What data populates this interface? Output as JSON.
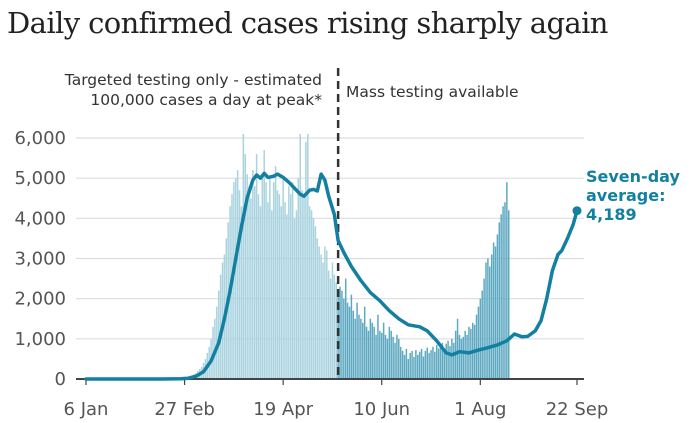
{
  "chart_data": {
    "type": "bar",
    "title": "Daily confirmed cases rising sharply again",
    "xlabel": "",
    "ylabel": "",
    "ylim": [
      0,
      6000
    ],
    "y_ticks": [
      0,
      1000,
      2000,
      3000,
      4000,
      5000,
      6000
    ],
    "y_tick_labels": [
      "0",
      "1,000",
      "2,000",
      "3,000",
      "4,000",
      "5,000",
      "6,000"
    ],
    "x_range_days": [
      0,
      260
    ],
    "x_ticks": [
      {
        "day": 0,
        "label": "6 Jan"
      },
      {
        "day": 52,
        "label": "27 Feb"
      },
      {
        "day": 104,
        "label": "19 Apr"
      },
      {
        "day": 156,
        "label": "10 Jun"
      },
      {
        "day": 208,
        "label": "1 Aug"
      },
      {
        "day": 259,
        "label": "22 Sep"
      }
    ],
    "grid": true,
    "divider": {
      "day": 133,
      "style": "dashed"
    },
    "annotations": {
      "left_line1": "Targeted testing only - estimated",
      "left_line2": "100,000 cases a day at peak*",
      "right": "Mass testing available"
    },
    "callout": {
      "line1": "Seven-day",
      "line2": "average:",
      "line3": "4,189",
      "day": 259,
      "value": 4189
    },
    "colors": {
      "bars_before": "#a9d3df",
      "bars_after": "#5ea9c2",
      "average_line": "#1380a1",
      "divider": "#333333",
      "grid": "#dddddd",
      "axis": "#444444"
    },
    "series": [
      {
        "name": "Seven-day average",
        "type": "line",
        "points": [
          [
            0,
            0
          ],
          [
            40,
            0
          ],
          [
            50,
            5
          ],
          [
            54,
            20
          ],
          [
            58,
            70
          ],
          [
            62,
            180
          ],
          [
            66,
            450
          ],
          [
            70,
            900
          ],
          [
            73,
            1500
          ],
          [
            76,
            2200
          ],
          [
            79,
            3000
          ],
          [
            82,
            3800
          ],
          [
            85,
            4500
          ],
          [
            88,
            4950
          ],
          [
            90,
            5080
          ],
          [
            92,
            5000
          ],
          [
            94,
            5120
          ],
          [
            96,
            5020
          ],
          [
            99,
            5050
          ],
          [
            101,
            5100
          ],
          [
            104,
            5020
          ],
          [
            107,
            4900
          ],
          [
            110,
            4750
          ],
          [
            113,
            4600
          ],
          [
            115,
            4550
          ],
          [
            118,
            4700
          ],
          [
            120,
            4720
          ],
          [
            122,
            4680
          ],
          [
            124,
            5100
          ],
          [
            126,
            4950
          ],
          [
            128,
            4550
          ],
          [
            131,
            4100
          ],
          [
            133,
            3450
          ],
          [
            136,
            3150
          ],
          [
            140,
            2800
          ],
          [
            145,
            2450
          ],
          [
            150,
            2150
          ],
          [
            155,
            1950
          ],
          [
            160,
            1700
          ],
          [
            165,
            1500
          ],
          [
            170,
            1350
          ],
          [
            176,
            1300
          ],
          [
            180,
            1200
          ],
          [
            185,
            950
          ],
          [
            190,
            650
          ],
          [
            193,
            600
          ],
          [
            197,
            680
          ],
          [
            202,
            650
          ],
          [
            207,
            720
          ],
          [
            212,
            780
          ],
          [
            217,
            850
          ],
          [
            222,
            950
          ],
          [
            226,
            1120
          ],
          [
            230,
            1050
          ],
          [
            233,
            1060
          ],
          [
            237,
            1200
          ],
          [
            240,
            1450
          ],
          [
            243,
            2000
          ],
          [
            246,
            2700
          ],
          [
            249,
            3100
          ],
          [
            251,
            3200
          ],
          [
            254,
            3500
          ],
          [
            257,
            3850
          ],
          [
            259,
            4189
          ]
        ]
      },
      {
        "name": "Daily confirmed cases",
        "type": "bar",
        "start_day": 50,
        "values": [
          10,
          20,
          30,
          15,
          40,
          60,
          90,
          120,
          150,
          200,
          250,
          300,
          400,
          500,
          650,
          800,
          1000,
          1300,
          1500,
          1800,
          2200,
          2600,
          2900,
          3100,
          3500,
          3900,
          4300,
          4600,
          4900,
          5000,
          5200,
          4700,
          4300,
          6100,
          5600,
          5100,
          4800,
          4500,
          5200,
          4800,
          5600,
          4600,
          4300,
          5100,
          5700,
          4900,
          4400,
          5000,
          4200,
          4900,
          5300,
          4700,
          4600,
          4300,
          5000,
          4400,
          4100,
          4800,
          4600,
          4900,
          4000,
          4200,
          5000,
          6100,
          4700,
          4600,
          5900,
          6100,
          4300,
          4200,
          4000,
          3800,
          3500,
          3300,
          3100,
          2900,
          3300,
          3200,
          2700,
          2500,
          2900,
          2600,
          2400,
          2100,
          2300,
          2200,
          2000,
          2500,
          1900,
          1800,
          2100,
          1700,
          1500,
          1900,
          1600,
          1500,
          1400,
          1800,
          1300,
          1200,
          1500,
          1400,
          1300,
          1100,
          1600,
          1200,
          1150,
          1400,
          1100,
          1000,
          1300,
          1200,
          1050,
          900,
          1100,
          1000,
          800,
          700,
          600,
          750,
          500,
          650,
          700,
          550,
          720,
          600,
          680,
          750,
          560,
          700,
          780,
          650,
          720,
          800,
          680,
          850,
          760,
          820,
          900,
          750,
          880,
          950,
          820,
          1000,
          900,
          1200,
          1500,
          1100,
          1000,
          1050,
          1200,
          1100,
          1300,
          1250,
          1400,
          1350,
          1600,
          1800,
          2000,
          2200,
          2500,
          2900,
          3000,
          2800,
          3100,
          3400,
          3300,
          3600,
          3900,
          4100,
          4300,
          4400,
          4900,
          4200
        ]
      }
    ]
  }
}
